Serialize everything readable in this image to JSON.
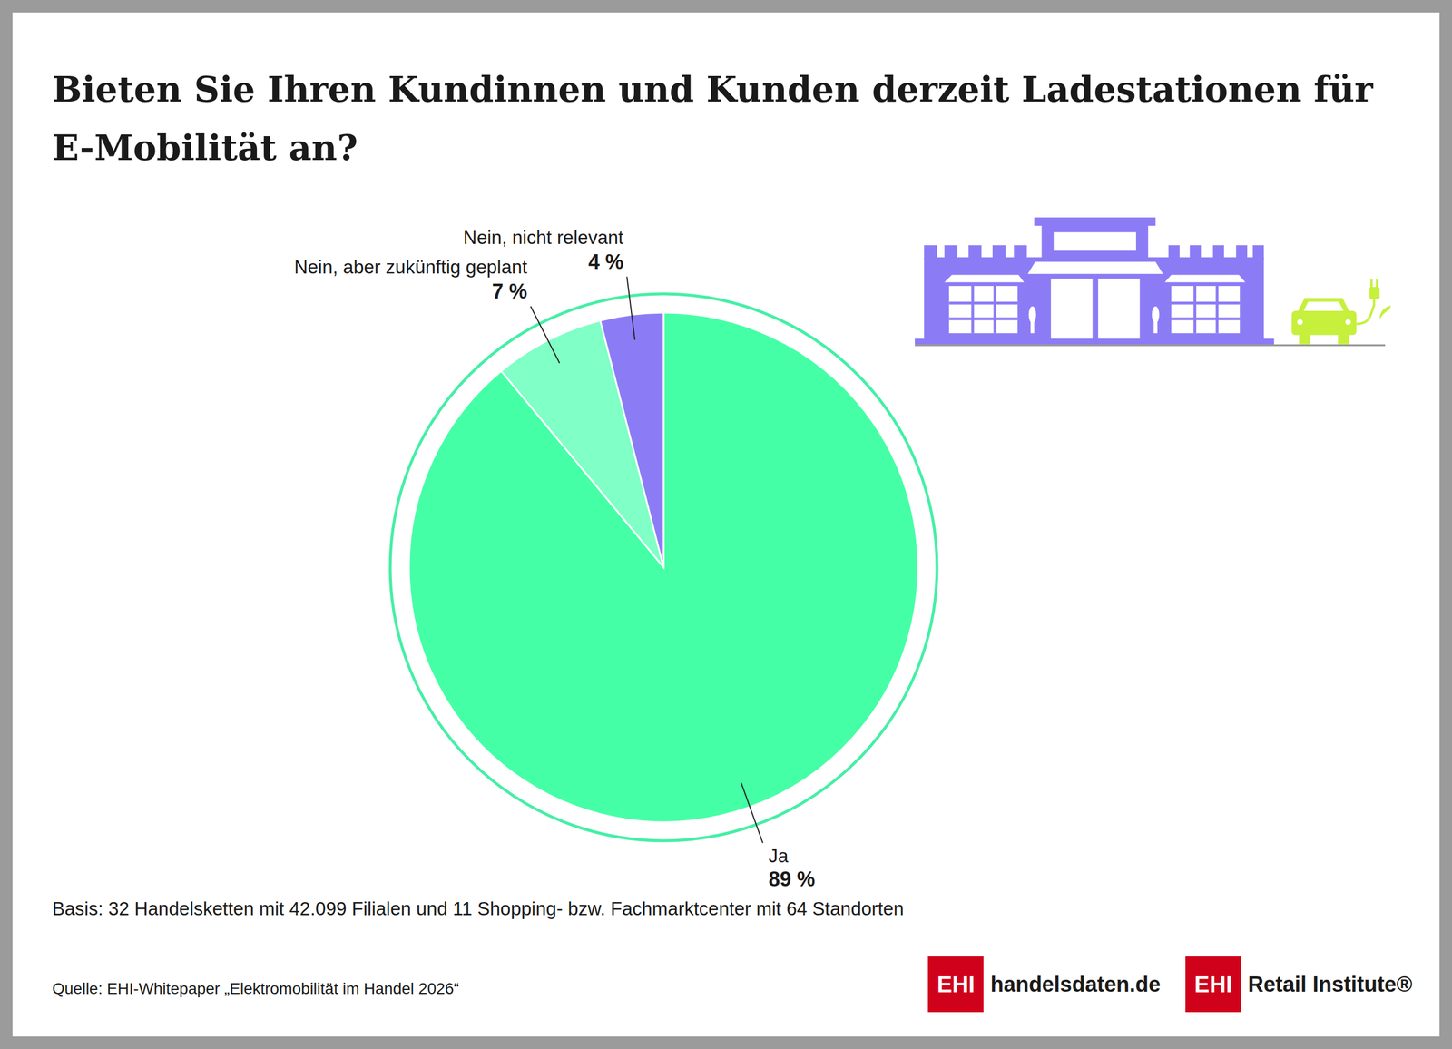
{
  "chart_data": {
    "type": "pie",
    "title": "Bieten Sie Ihren Kundinnen und Kunden derzeit Ladestationen für E-Mobilität an?",
    "categories": [
      "Ja",
      "Nein, aber zukünftig geplant",
      "Nein, nicht relevant"
    ],
    "values": [
      89,
      7,
      4
    ],
    "value_labels": [
      "89 %",
      "7 %",
      "4 %"
    ],
    "colors": [
      "#45ffa6",
      "#80ffc6",
      "#8b7cf6"
    ],
    "data_labels": true,
    "footnote": "Basis: 32 Handelsketten mit 42.099 Filialen und 11 Shopping- bzw. Fachmarktcenter mit 64 Standorten",
    "source": "Quelle: EHI-Whitepaper „Elektromobilität im Handel 2026“",
    "logos": [
      {
        "badge": "EHI",
        "text": "handelsdaten.de"
      },
      {
        "badge": "EHI",
        "text": "Retail Institute®"
      }
    ]
  }
}
